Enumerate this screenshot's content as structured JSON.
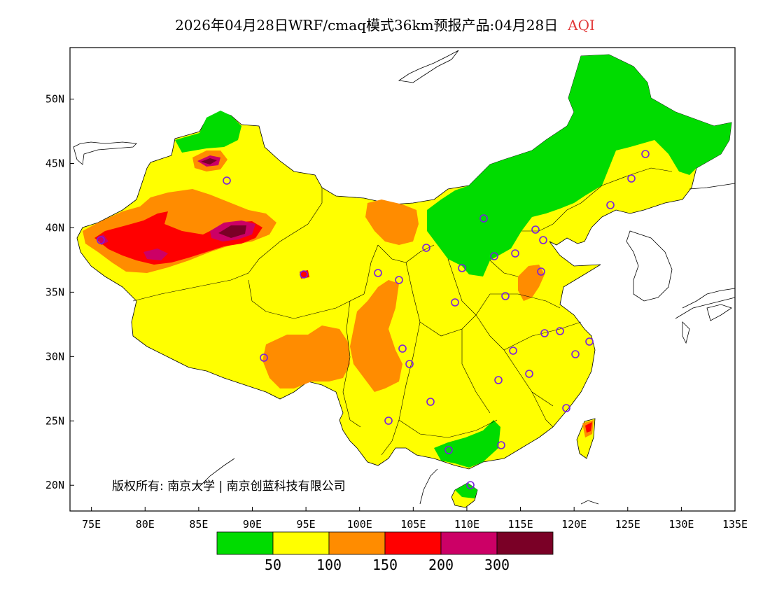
{
  "header": {
    "title": "2026年04月28日WRF/cmaq模式36km预报产品:04月28日",
    "variable": "AQI"
  },
  "copyright": "版权所有: 南京大学 | 南京创蓝科技有限公司",
  "axes": {
    "x_ticks": [
      "75E",
      "80E",
      "85E",
      "90E",
      "95E",
      "100E",
      "105E",
      "110E",
      "115E",
      "120E",
      "125E",
      "130E",
      "135E"
    ],
    "y_ticks": [
      "50N",
      "45N",
      "40N",
      "35N",
      "30N",
      "25N",
      "20N"
    ],
    "lon_range": [
      73,
      135
    ],
    "lat_range": [
      18,
      54
    ]
  },
  "legend": {
    "bins": [
      {
        "range": "<50",
        "color": "#00dc00"
      },
      {
        "range": "50-100",
        "color": "#ffff00"
      },
      {
        "range": "100-150",
        "color": "#ff8c00"
      },
      {
        "range": "150-200",
        "color": "#ff0000"
      },
      {
        "range": "200-300",
        "color": "#cc0066"
      },
      {
        "range": ">300",
        "color": "#7a0026"
      }
    ],
    "labels": [
      "50",
      "100",
      "150",
      "200",
      "300"
    ]
  },
  "stations_marker": "circle-marker-icon"
}
